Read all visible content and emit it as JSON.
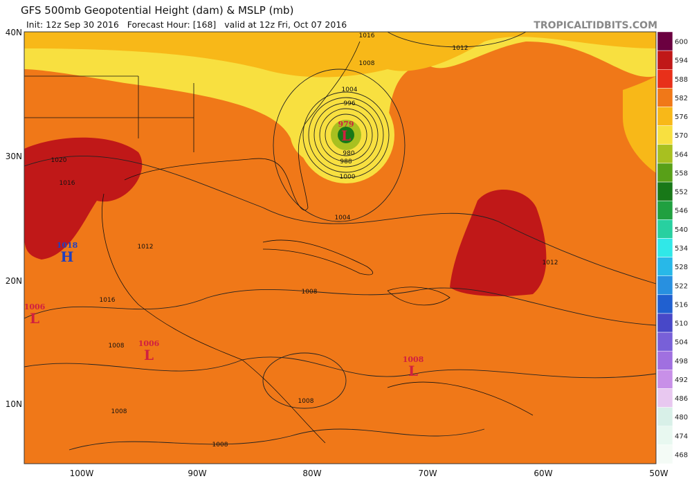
{
  "header": {
    "title": "GFS 500mb Geopotential Height (dam) & MSLP (mb)",
    "subtitle": "Init: 12z Sep 30 2016   Forecast Hour: [168]   valid at 12z Fri, Oct 07 2016",
    "site": "TROPICALTIDBITS.COM"
  },
  "colorbar": {
    "levels": [
      600,
      594,
      588,
      582,
      576,
      570,
      564,
      558,
      552,
      546,
      540,
      534,
      528,
      522,
      516,
      510,
      504,
      498,
      492,
      486,
      480,
      474,
      468
    ],
    "colors": [
      "#6b0040",
      "#c01818",
      "#e8301a",
      "#f07818",
      "#f8b818",
      "#f8e040",
      "#a8c020",
      "#58a018",
      "#187818",
      "#20a040",
      "#28d0a0",
      "#30e8e8",
      "#28b8e8",
      "#2890e0",
      "#2060d0",
      "#4848c8",
      "#7860d8",
      "#a070e0",
      "#c890e8",
      "#e8c8f0",
      "#d8f0e8",
      "#e8f8f0",
      "#f4fbf6"
    ]
  },
  "axes": {
    "lat": [
      "40N",
      "30N",
      "20N",
      "10N"
    ],
    "lon": [
      "100W",
      "90W",
      "80W",
      "70W",
      "60W",
      "50W"
    ]
  },
  "pressure_centers": [
    {
      "value": "979",
      "letter": "L"
    },
    {
      "value": "1018",
      "letter": "H"
    },
    {
      "value": "1006",
      "letter": "L"
    },
    {
      "value": "1006",
      "letter": "L"
    },
    {
      "value": "1008",
      "letter": "L"
    }
  ],
  "contour_labels": [
    "1016",
    "1012",
    "1008",
    "1004",
    "996",
    "980",
    "988",
    "1000",
    "1004",
    "1020",
    "1016",
    "1012",
    "1008",
    "1016",
    "1008",
    "1008",
    "1008",
    "1008",
    "1012"
  ]
}
